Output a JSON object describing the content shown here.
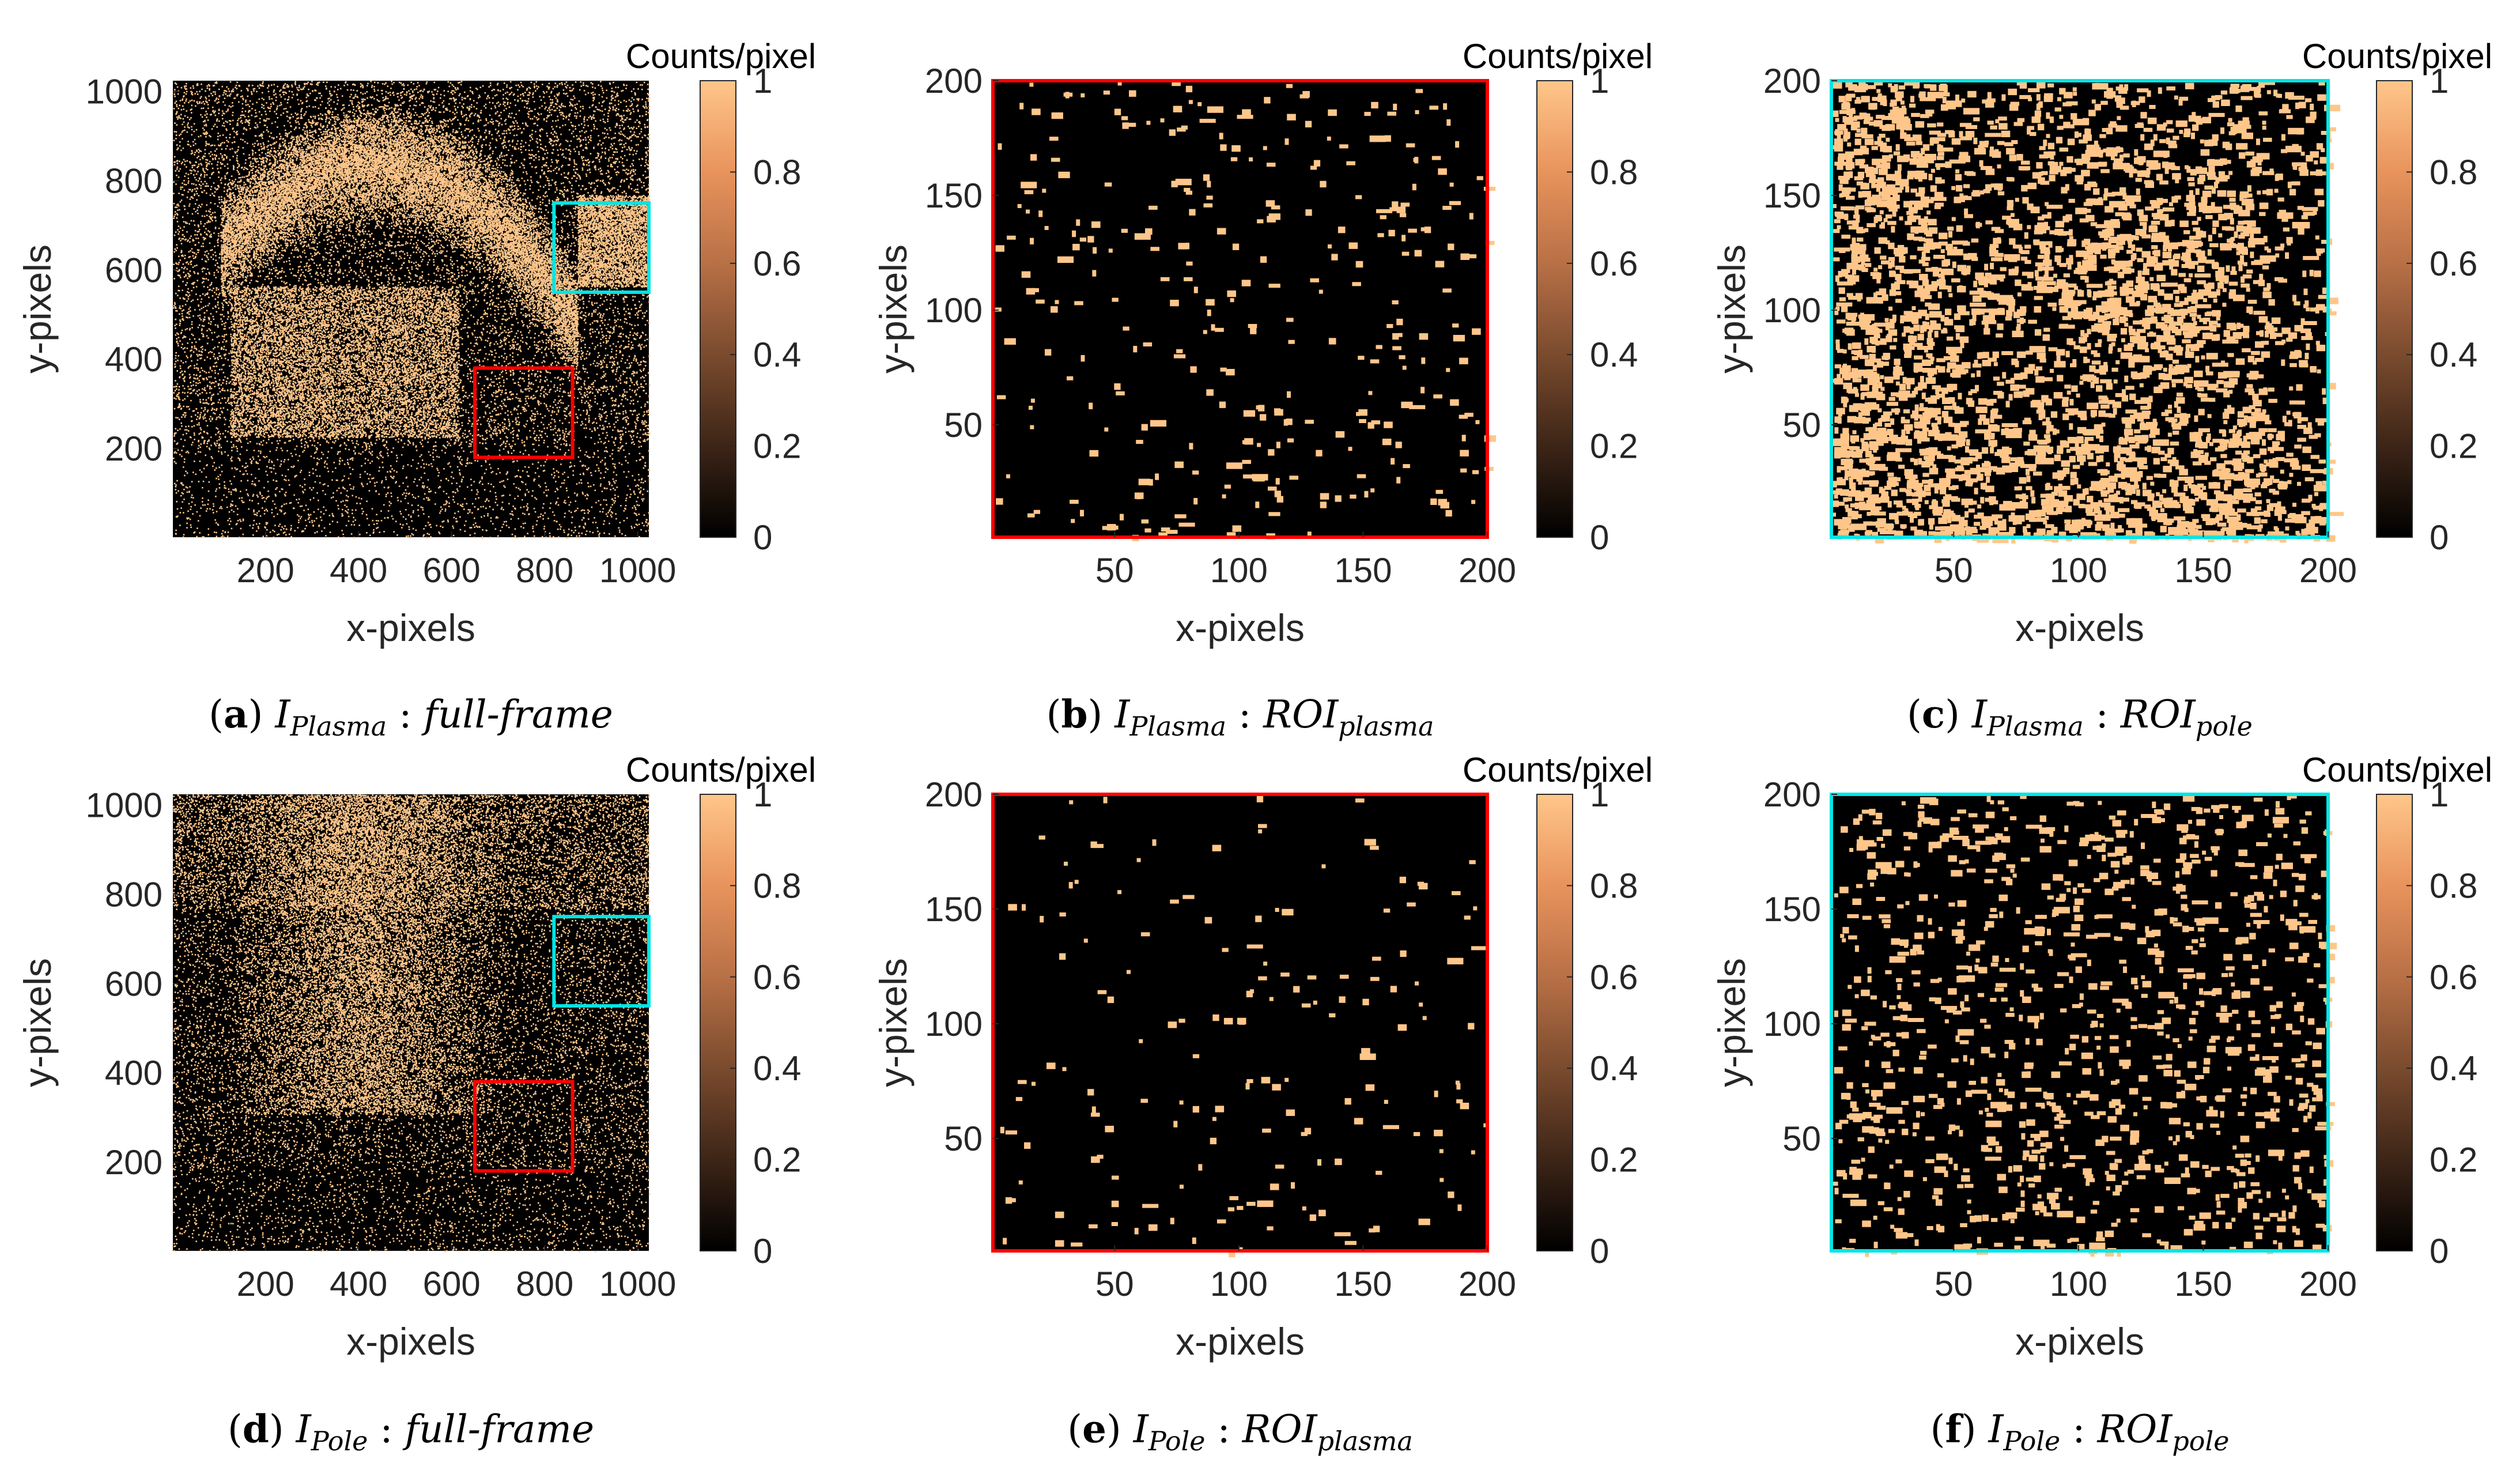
{
  "colorbar": {
    "label": "Counts/pixel",
    "ticks": [
      "0",
      "0.2",
      "0.4",
      "0.6",
      "0.8",
      "1"
    ],
    "colors": [
      "#000000",
      "#3d2517",
      "#7a4b2e",
      "#b87046",
      "#e8935c",
      "#ffc68a"
    ]
  },
  "dot_color": "#ffc68a",
  "roi_colors": {
    "plasma": "#ff0000",
    "pole": "#00e5e5"
  },
  "chart_data": [
    {
      "id": "a",
      "type": "heatmap",
      "view": "full",
      "xlabel": "x-pixels",
      "ylabel": "y-pixels",
      "xlim": [
        1,
        1024
      ],
      "ylim": [
        1,
        1024
      ],
      "xticks": [
        200,
        400,
        600,
        800,
        1000
      ],
      "yticks": [
        200,
        400,
        600,
        800,
        1000
      ],
      "clim": [
        0,
        1
      ],
      "colorbar_label": "Counts/pixel",
      "border": "",
      "roi_boxes": [
        {
          "name": "plasma",
          "color": "#ff0000",
          "x": [
            650,
            860
          ],
          "y": [
            180,
            380
          ]
        },
        {
          "name": "pole",
          "color": "#00e5e5",
          "x": [
            820,
            1024
          ],
          "y": [
            550,
            750
          ]
        }
      ],
      "density": "plasma-full",
      "caption": {
        "letter": "a",
        "var": "I",
        "var_sub": "Plasma",
        "sep": " : ",
        "roi": "",
        "roi_sub": "",
        "plain": "full-frame"
      }
    },
    {
      "id": "b",
      "type": "heatmap",
      "view": "roi",
      "xlabel": "x-pixels",
      "ylabel": "y-pixels",
      "xlim": [
        1,
        200
      ],
      "ylim": [
        1,
        200
      ],
      "xticks": [
        50,
        100,
        150,
        200
      ],
      "yticks": [
        50,
        100,
        150,
        200
      ],
      "clim": [
        0,
        1
      ],
      "colorbar_label": "Counts/pixel",
      "border": "#ff0000",
      "roi_boxes": [],
      "density": "sparse-medium",
      "caption": {
        "letter": "b",
        "var": "I",
        "var_sub": "Plasma",
        "sep": " : ",
        "roi": "ROI",
        "roi_sub": "plasma",
        "plain": ""
      }
    },
    {
      "id": "c",
      "type": "heatmap",
      "view": "roi",
      "xlabel": "x-pixels",
      "ylabel": "y-pixels",
      "xlim": [
        1,
        200
      ],
      "ylim": [
        1,
        200
      ],
      "xticks": [
        50,
        100,
        150,
        200
      ],
      "yticks": [
        50,
        100,
        150,
        200
      ],
      "clim": [
        0,
        1
      ],
      "colorbar_label": "Counts/pixel",
      "border": "#00e5e5",
      "roi_boxes": [],
      "density": "dense",
      "caption": {
        "letter": "c",
        "var": "I",
        "var_sub": "Plasma",
        "sep": " : ",
        "roi": "ROI",
        "roi_sub": "pole",
        "plain": ""
      }
    },
    {
      "id": "d",
      "type": "heatmap",
      "view": "full",
      "xlabel": "x-pixels",
      "ylabel": "y-pixels",
      "xlim": [
        1,
        1024
      ],
      "ylim": [
        1,
        1024
      ],
      "xticks": [
        200,
        400,
        600,
        800,
        1000
      ],
      "yticks": [
        200,
        400,
        600,
        800,
        1000
      ],
      "clim": [
        0,
        1
      ],
      "colorbar_label": "Counts/pixel",
      "border": "",
      "roi_boxes": [
        {
          "name": "plasma",
          "color": "#ff0000",
          "x": [
            650,
            860
          ],
          "y": [
            180,
            380
          ]
        },
        {
          "name": "pole",
          "color": "#00e5e5",
          "x": [
            820,
            1024
          ],
          "y": [
            550,
            750
          ]
        }
      ],
      "density": "pole-full",
      "caption": {
        "letter": "d",
        "var": "I",
        "var_sub": "Pole",
        "sep": " : ",
        "roi": "",
        "roi_sub": "",
        "plain": "full-frame"
      }
    },
    {
      "id": "e",
      "type": "heatmap",
      "view": "roi",
      "xlabel": "x-pixels",
      "ylabel": "y-pixels",
      "xlim": [
        1,
        200
      ],
      "ylim": [
        1,
        200
      ],
      "xticks": [
        50,
        100,
        150,
        200
      ],
      "yticks": [
        50,
        100,
        150,
        200
      ],
      "clim": [
        0,
        1
      ],
      "colorbar_label": "Counts/pixel",
      "border": "#ff0000",
      "roi_boxes": [],
      "density": "sparse-low",
      "caption": {
        "letter": "e",
        "var": "I",
        "var_sub": "Pole",
        "sep": " : ",
        "roi": "ROI",
        "roi_sub": "plasma",
        "plain": ""
      }
    },
    {
      "id": "f",
      "type": "heatmap",
      "view": "roi",
      "xlabel": "x-pixels",
      "ylabel": "y-pixels",
      "xlim": [
        1,
        200
      ],
      "ylim": [
        1,
        200
      ],
      "xticks": [
        50,
        100,
        150,
        200
      ],
      "yticks": [
        50,
        100,
        150,
        200
      ],
      "clim": [
        0,
        1
      ],
      "colorbar_label": "Counts/pixel",
      "border": "#00e5e5",
      "roi_boxes": [],
      "density": "sparse-high",
      "caption": {
        "letter": "f",
        "var": "I",
        "var_sub": "Pole",
        "sep": " : ",
        "roi": "ROI",
        "roi_sub": "pole",
        "plain": ""
      }
    }
  ]
}
